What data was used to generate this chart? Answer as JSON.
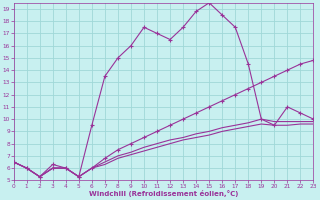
{
  "background_color": "#c8f0f0",
  "grid_color": "#a0d8d8",
  "line_color": "#993399",
  "xlabel": "Windchill (Refroidissement éolien,°C)",
  "xlim": [
    0,
    23
  ],
  "ylim": [
    5,
    19.5
  ],
  "xticks": [
    0,
    1,
    2,
    3,
    4,
    5,
    6,
    7,
    8,
    9,
    10,
    11,
    12,
    13,
    14,
    15,
    16,
    17,
    18,
    19,
    20,
    21,
    22,
    23
  ],
  "yticks": [
    5,
    6,
    7,
    8,
    9,
    10,
    11,
    12,
    13,
    14,
    15,
    16,
    17,
    18,
    19
  ],
  "s1_x": [
    0,
    1,
    2,
    3,
    4,
    5,
    6,
    7,
    8,
    9,
    10,
    11,
    12,
    13,
    14,
    15,
    16,
    17,
    18,
    19,
    20,
    21,
    22,
    23
  ],
  "s1_y": [
    6.5,
    6.0,
    5.3,
    6.3,
    6.0,
    5.3,
    9.5,
    13.5,
    15.0,
    16.0,
    17.5,
    17.0,
    16.5,
    17.5,
    18.8,
    19.5,
    18.5,
    17.5,
    14.5,
    10.0,
    9.5,
    11.0,
    10.5,
    10.0
  ],
  "s2_x": [
    0,
    1,
    2,
    3,
    4,
    5,
    6,
    7,
    8,
    9,
    10,
    11,
    12,
    13,
    14,
    15,
    16,
    17,
    18,
    19,
    20,
    21,
    22,
    23
  ],
  "s2_y": [
    6.5,
    6.0,
    5.3,
    6.0,
    6.0,
    5.3,
    6.0,
    6.8,
    7.5,
    8.0,
    8.5,
    9.0,
    9.5,
    10.0,
    10.5,
    11.0,
    11.5,
    12.0,
    12.5,
    13.0,
    13.5,
    14.0,
    14.5,
    14.8
  ],
  "s3_x": [
    0,
    1,
    2,
    3,
    4,
    5,
    6,
    7,
    8,
    9,
    10,
    11,
    12,
    13,
    14,
    15,
    16,
    17,
    18,
    19,
    20,
    21,
    22,
    23
  ],
  "s3_y": [
    6.5,
    6.0,
    5.3,
    6.0,
    6.0,
    5.3,
    6.0,
    6.5,
    7.0,
    7.3,
    7.7,
    8.0,
    8.3,
    8.5,
    8.8,
    9.0,
    9.3,
    9.5,
    9.7,
    10.0,
    9.8,
    9.8,
    9.8,
    9.8
  ],
  "s4_x": [
    0,
    1,
    2,
    3,
    4,
    5,
    6,
    7,
    8,
    9,
    10,
    11,
    12,
    13,
    14,
    15,
    16,
    17,
    18,
    19,
    20,
    21,
    22,
    23
  ],
  "s4_y": [
    6.5,
    6.0,
    5.3,
    6.0,
    6.0,
    5.3,
    6.0,
    6.3,
    6.8,
    7.1,
    7.4,
    7.7,
    8.0,
    8.3,
    8.5,
    8.7,
    9.0,
    9.2,
    9.4,
    9.6,
    9.5,
    9.5,
    9.6,
    9.6
  ]
}
